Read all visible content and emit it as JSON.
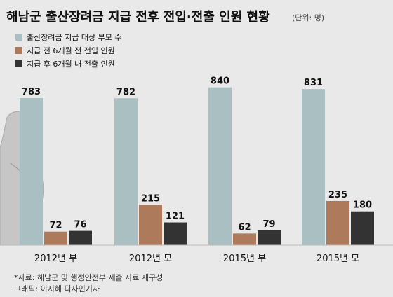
{
  "chart_data": {
    "type": "bar",
    "title": "해남군 출산장려금 지급 전후 전입·전출 인원 현황",
    "unit_note": "(단위: 명)",
    "categories": [
      "2012년 부",
      "2012년 모",
      "2015년 부",
      "2015년 모"
    ],
    "series": [
      {
        "name": "출산장려금 지급 대상 부모 수",
        "values": [
          783,
          782,
          840,
          831
        ],
        "color": "#a9bfc1"
      },
      {
        "name": "지급 전 6개월 전 전입 인원",
        "values": [
          72,
          215,
          62,
          235
        ],
        "color": "#ad7a5c"
      },
      {
        "name": "지급 후 6개월 내 전출 인원",
        "values": [
          76,
          121,
          79,
          180
        ],
        "color": "#333333"
      }
    ],
    "ylim": [
      0,
      900
    ],
    "grid": false,
    "legend_position": "top-left"
  },
  "source": "*자료: 해남군 및 행정안전부 제출 자료 재구성",
  "credit": "그래픽: 이지혜 디자인기자",
  "colors": {
    "background": "#e9e9e9",
    "silhouette": "#c6c6c6"
  }
}
